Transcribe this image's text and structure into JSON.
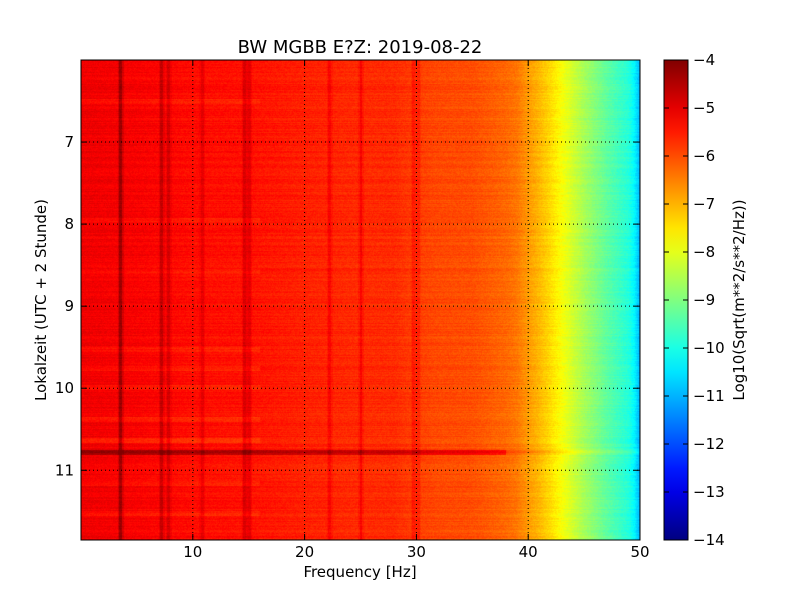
{
  "chart_data": {
    "type": "heatmap",
    "title": "BW MGBB E?Z: 2019-08-22",
    "xlabel": "Frequency [Hz]",
    "ylabel": "Lokalzeit (UTC + 2 Stunde)",
    "xlim": [
      0,
      50
    ],
    "ylim": [
      11.85,
      6.0
    ],
    "y_inverted": true,
    "x_ticks": [
      10,
      20,
      30,
      40,
      50
    ],
    "x_tick_labels": [
      "10",
      "20",
      "30",
      "40",
      "50"
    ],
    "y_ticks": [
      7,
      8,
      9,
      10,
      11
    ],
    "y_tick_labels": [
      "7",
      "8",
      "9",
      "10",
      "11"
    ],
    "grid": true,
    "colorbar": {
      "label": "Log10(Sqrt(m**2/s**2/Hz))",
      "colormap": "jet",
      "range": [
        -14,
        -4
      ],
      "ticks": [
        -4,
        -5,
        -6,
        -7,
        -8,
        -9,
        -10,
        -11,
        -12,
        -13,
        -14
      ],
      "tick_labels": [
        "−4",
        "−5",
        "−6",
        "−7",
        "−8",
        "−9",
        "−10",
        "−11",
        "−12",
        "−13",
        "−14"
      ]
    },
    "spectral_profile": {
      "frequency_hz": [
        0,
        5,
        10,
        15,
        20,
        25,
        28,
        30,
        32,
        35,
        38,
        39,
        40,
        41,
        42,
        43,
        44,
        45,
        46,
        47,
        48,
        49,
        49.5,
        50
      ],
      "log10_amplitude": [
        -5.1,
        -5.2,
        -5.35,
        -5.4,
        -5.55,
        -5.65,
        -5.65,
        -5.85,
        -5.95,
        -6.0,
        -6.25,
        -6.4,
        -6.75,
        -7.05,
        -7.4,
        -7.8,
        -8.2,
        -8.6,
        -8.95,
        -9.3,
        -9.6,
        -9.9,
        -10.3,
        -11.0
      ]
    },
    "vertical_lines": [
      {
        "frequency_hz": 3.5,
        "delta": 0.9
      },
      {
        "frequency_hz": 7.2,
        "delta": 0.6
      },
      {
        "frequency_hz": 7.8,
        "delta": 0.45
      },
      {
        "frequency_hz": 10.8,
        "delta": 0.35
      },
      {
        "frequency_hz": 14.6,
        "delta": 0.5
      },
      {
        "frequency_hz": 15.0,
        "delta": 0.4
      },
      {
        "frequency_hz": 22.2,
        "delta": 0.35
      },
      {
        "frequency_hz": 25.0,
        "delta": 0.45
      },
      {
        "frequency_hz": 29.7,
        "delta": 0.35
      },
      {
        "frequency_hz": 30.1,
        "delta": 0.3
      }
    ],
    "horizontal_bands": [
      {
        "time_h": 6.5,
        "delta": -0.2
      },
      {
        "time_h": 7.95,
        "delta": -0.2
      },
      {
        "time_h": 8.57,
        "delta": -0.2
      },
      {
        "time_h": 9.52,
        "delta": -0.2
      },
      {
        "time_h": 9.75,
        "delta": -0.25
      },
      {
        "time_h": 9.98,
        "delta": -0.2
      },
      {
        "time_h": 10.37,
        "delta": -0.25
      },
      {
        "time_h": 10.63,
        "delta": -0.3
      },
      {
        "time_h": 10.78,
        "delta": 0.9
      },
      {
        "time_h": 11.15,
        "delta": -0.2
      },
      {
        "time_h": 11.52,
        "delta": -0.2
      }
    ]
  }
}
